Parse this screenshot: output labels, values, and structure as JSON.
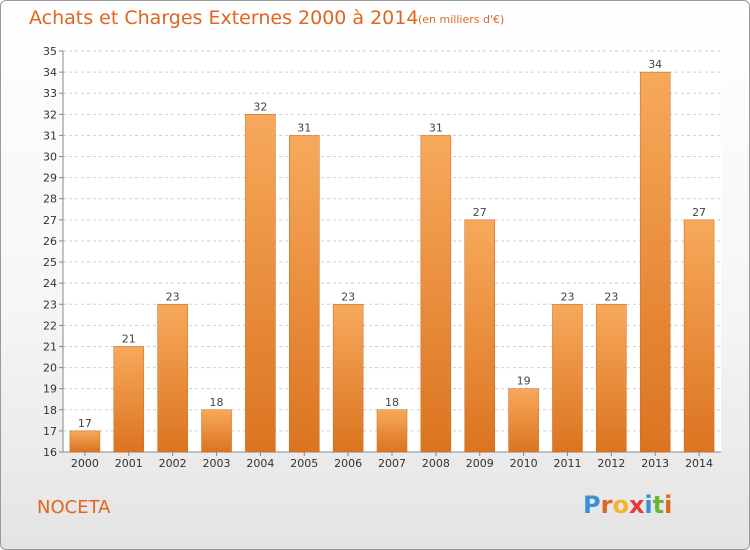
{
  "header": {
    "title": "Achats et Charges Externes 2000 à 2014",
    "subtitle": "(en milliers d'€)"
  },
  "footer": {
    "city": "NOCETA",
    "logo": {
      "letters": [
        "P",
        "r",
        "o",
        "x",
        "i",
        "t",
        "i"
      ],
      "colors": [
        "#3a8fd6",
        "#e0651f",
        "#f2b52a",
        "#e83a3a",
        "#3a8fd6",
        "#6ab43c",
        "#e0651f"
      ]
    }
  },
  "colors": {
    "bar_light": "#f7a95b",
    "bar_dark": "#db7420",
    "accent": "#e0651f"
  },
  "chart_data": {
    "type": "bar",
    "title": "Achats et Charges Externes 2000 à 2014",
    "subtitle": "(en milliers d'€)",
    "categories": [
      "2000",
      "2001",
      "2002",
      "2003",
      "2004",
      "2005",
      "2006",
      "2007",
      "2008",
      "2009",
      "2010",
      "2011",
      "2012",
      "2013",
      "2014"
    ],
    "values": [
      17,
      21,
      23,
      18,
      32,
      31,
      23,
      18,
      31,
      27,
      19,
      23,
      23,
      34,
      27
    ],
    "ylim": [
      16,
      35
    ],
    "yticks": [
      16,
      17,
      18,
      19,
      20,
      21,
      22,
      23,
      24,
      25,
      26,
      27,
      28,
      29,
      30,
      31,
      32,
      33,
      34,
      35
    ],
    "grid": true,
    "xlabel": "",
    "ylabel": ""
  }
}
